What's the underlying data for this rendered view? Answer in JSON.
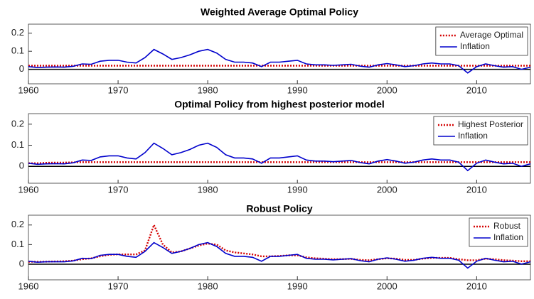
{
  "chart_data": [
    {
      "type": "line",
      "title": "Weighted Average Optimal Policy",
      "x": [
        1960,
        1961,
        1962,
        1963,
        1964,
        1965,
        1966,
        1967,
        1968,
        1969,
        1970,
        1971,
        1972,
        1973,
        1974,
        1975,
        1976,
        1977,
        1978,
        1979,
        1980,
        1981,
        1982,
        1983,
        1984,
        1985,
        1986,
        1987,
        1988,
        1989,
        1990,
        1991,
        1992,
        1993,
        1994,
        1995,
        1996,
        1997,
        1998,
        1999,
        2000,
        2001,
        2002,
        2003,
        2004,
        2005,
        2006,
        2007,
        2008,
        2009,
        2010,
        2011,
        2012,
        2013,
        2014,
        2015,
        2016
      ],
      "series": [
        {
          "name": "Average Optimal",
          "color": "#d40000",
          "style": "dotted",
          "values": [
            0.02,
            0.02,
            0.02,
            0.02,
            0.02,
            0.02,
            0.02,
            0.02,
            0.02,
            0.02,
            0.02,
            0.02,
            0.02,
            0.02,
            0.02,
            0.02,
            0.02,
            0.02,
            0.02,
            0.02,
            0.02,
            0.02,
            0.02,
            0.02,
            0.02,
            0.02,
            0.02,
            0.02,
            0.02,
            0.02,
            0.02,
            0.02,
            0.02,
            0.02,
            0.02,
            0.02,
            0.02,
            0.02,
            0.02,
            0.02,
            0.02,
            0.02,
            0.02,
            0.02,
            0.02,
            0.02,
            0.02,
            0.02,
            0.02,
            0.02,
            0.02,
            0.02,
            0.02,
            0.02,
            0.02,
            0.02,
            0.02
          ]
        },
        {
          "name": "Inflation",
          "color": "#0000cc",
          "style": "solid",
          "values": [
            0.015,
            0.01,
            0.012,
            0.013,
            0.012,
            0.017,
            0.03,
            0.028,
            0.045,
            0.05,
            0.05,
            0.04,
            0.035,
            0.065,
            0.11,
            0.085,
            0.055,
            0.065,
            0.08,
            0.1,
            0.11,
            0.09,
            0.055,
            0.04,
            0.04,
            0.035,
            0.015,
            0.04,
            0.04,
            0.045,
            0.05,
            0.03,
            0.025,
            0.025,
            0.022,
            0.025,
            0.028,
            0.018,
            0.012,
            0.025,
            0.032,
            0.025,
            0.015,
            0.02,
            0.03,
            0.035,
            0.03,
            0.03,
            0.02,
            -0.02,
            0.015,
            0.03,
            0.02,
            0.012,
            0.015,
            0.0,
            0.012
          ]
        }
      ],
      "xlim": [
        1960,
        2016
      ],
      "xticks": [
        1960,
        1970,
        1980,
        1990,
        2000,
        2010
      ],
      "ylim": [
        -0.08,
        0.25
      ],
      "yticks": [
        0,
        0.1,
        0.2
      ],
      "zero_line": true,
      "legend": "upper right"
    },
    {
      "type": "line",
      "title": "Optimal Policy from highest posterior model",
      "x": [
        1960,
        1961,
        1962,
        1963,
        1964,
        1965,
        1966,
        1967,
        1968,
        1969,
        1970,
        1971,
        1972,
        1973,
        1974,
        1975,
        1976,
        1977,
        1978,
        1979,
        1980,
        1981,
        1982,
        1983,
        1984,
        1985,
        1986,
        1987,
        1988,
        1989,
        1990,
        1991,
        1992,
        1993,
        1994,
        1995,
        1996,
        1997,
        1998,
        1999,
        2000,
        2001,
        2002,
        2003,
        2004,
        2005,
        2006,
        2007,
        2008,
        2009,
        2010,
        2011,
        2012,
        2013,
        2014,
        2015,
        2016
      ],
      "series": [
        {
          "name": "Highest Posterior",
          "color": "#d40000",
          "style": "dotted",
          "values": [
            0.015,
            0.015,
            0.017,
            0.018,
            0.018,
            0.019,
            0.02,
            0.02,
            0.02,
            0.02,
            0.02,
            0.02,
            0.02,
            0.02,
            0.02,
            0.02,
            0.02,
            0.02,
            0.02,
            0.02,
            0.02,
            0.02,
            0.02,
            0.02,
            0.02,
            0.02,
            0.02,
            0.02,
            0.02,
            0.02,
            0.02,
            0.02,
            0.02,
            0.02,
            0.02,
            0.02,
            0.02,
            0.02,
            0.02,
            0.02,
            0.02,
            0.02,
            0.02,
            0.02,
            0.02,
            0.02,
            0.02,
            0.02,
            0.02,
            0.02,
            0.02,
            0.02,
            0.02,
            0.02,
            0.02,
            0.02,
            0.02
          ]
        },
        {
          "name": "Inflation",
          "color": "#0000cc",
          "style": "solid",
          "values": [
            0.015,
            0.01,
            0.012,
            0.013,
            0.012,
            0.017,
            0.03,
            0.028,
            0.045,
            0.05,
            0.05,
            0.04,
            0.035,
            0.065,
            0.11,
            0.085,
            0.055,
            0.065,
            0.08,
            0.1,
            0.11,
            0.09,
            0.055,
            0.04,
            0.04,
            0.035,
            0.015,
            0.04,
            0.04,
            0.045,
            0.05,
            0.03,
            0.025,
            0.025,
            0.022,
            0.025,
            0.028,
            0.018,
            0.012,
            0.025,
            0.032,
            0.025,
            0.015,
            0.02,
            0.03,
            0.035,
            0.03,
            0.03,
            0.02,
            -0.02,
            0.015,
            0.03,
            0.02,
            0.012,
            0.015,
            0.0,
            0.012
          ]
        }
      ],
      "xlim": [
        1960,
        2016
      ],
      "xticks": [
        1960,
        1970,
        1980,
        1990,
        2000,
        2010
      ],
      "ylim": [
        -0.08,
        0.25
      ],
      "yticks": [
        0,
        0.1,
        0.2
      ],
      "zero_line": true,
      "legend": "upper right"
    },
    {
      "type": "line",
      "title": "Robust Policy",
      "x": [
        1960,
        1961,
        1962,
        1963,
        1964,
        1965,
        1966,
        1967,
        1968,
        1969,
        1970,
        1971,
        1972,
        1973,
        1974,
        1975,
        1976,
        1977,
        1978,
        1979,
        1980,
        1981,
        1982,
        1983,
        1984,
        1985,
        1986,
        1987,
        1988,
        1989,
        1990,
        1991,
        1992,
        1993,
        1994,
        1995,
        1996,
        1997,
        1998,
        1999,
        2000,
        2001,
        2002,
        2003,
        2004,
        2005,
        2006,
        2007,
        2008,
        2009,
        2010,
        2011,
        2012,
        2013,
        2014,
        2015,
        2016
      ],
      "series": [
        {
          "name": "Robust",
          "color": "#d40000",
          "style": "dotted",
          "values": [
            0.012,
            0.012,
            0.013,
            0.014,
            0.015,
            0.018,
            0.025,
            0.03,
            0.04,
            0.048,
            0.05,
            0.05,
            0.05,
            0.07,
            0.2,
            0.1,
            0.06,
            0.065,
            0.08,
            0.095,
            0.105,
            0.1,
            0.07,
            0.06,
            0.055,
            0.05,
            0.04,
            0.04,
            0.042,
            0.045,
            0.045,
            0.035,
            0.03,
            0.028,
            0.025,
            0.026,
            0.027,
            0.022,
            0.02,
            0.025,
            0.03,
            0.028,
            0.022,
            0.022,
            0.028,
            0.032,
            0.032,
            0.032,
            0.025,
            0.02,
            0.02,
            0.028,
            0.025,
            0.02,
            0.018,
            0.015,
            0.015
          ]
        },
        {
          "name": "Inflation",
          "color": "#0000cc",
          "style": "solid",
          "values": [
            0.015,
            0.01,
            0.012,
            0.013,
            0.012,
            0.017,
            0.03,
            0.028,
            0.045,
            0.05,
            0.05,
            0.04,
            0.035,
            0.065,
            0.11,
            0.085,
            0.055,
            0.065,
            0.08,
            0.1,
            0.11,
            0.09,
            0.055,
            0.04,
            0.04,
            0.035,
            0.015,
            0.04,
            0.04,
            0.045,
            0.05,
            0.03,
            0.025,
            0.025,
            0.022,
            0.025,
            0.028,
            0.018,
            0.012,
            0.025,
            0.032,
            0.025,
            0.015,
            0.02,
            0.03,
            0.035,
            0.03,
            0.03,
            0.02,
            -0.02,
            0.015,
            0.03,
            0.02,
            0.012,
            0.015,
            0.0,
            0.012
          ]
        }
      ],
      "xlim": [
        1960,
        2016
      ],
      "xticks": [
        1960,
        1970,
        1980,
        1990,
        2000,
        2010
      ],
      "ylim": [
        -0.08,
        0.25
      ],
      "yticks": [
        0,
        0.1,
        0.2
      ],
      "zero_line": true,
      "legend": "upper right"
    }
  ]
}
